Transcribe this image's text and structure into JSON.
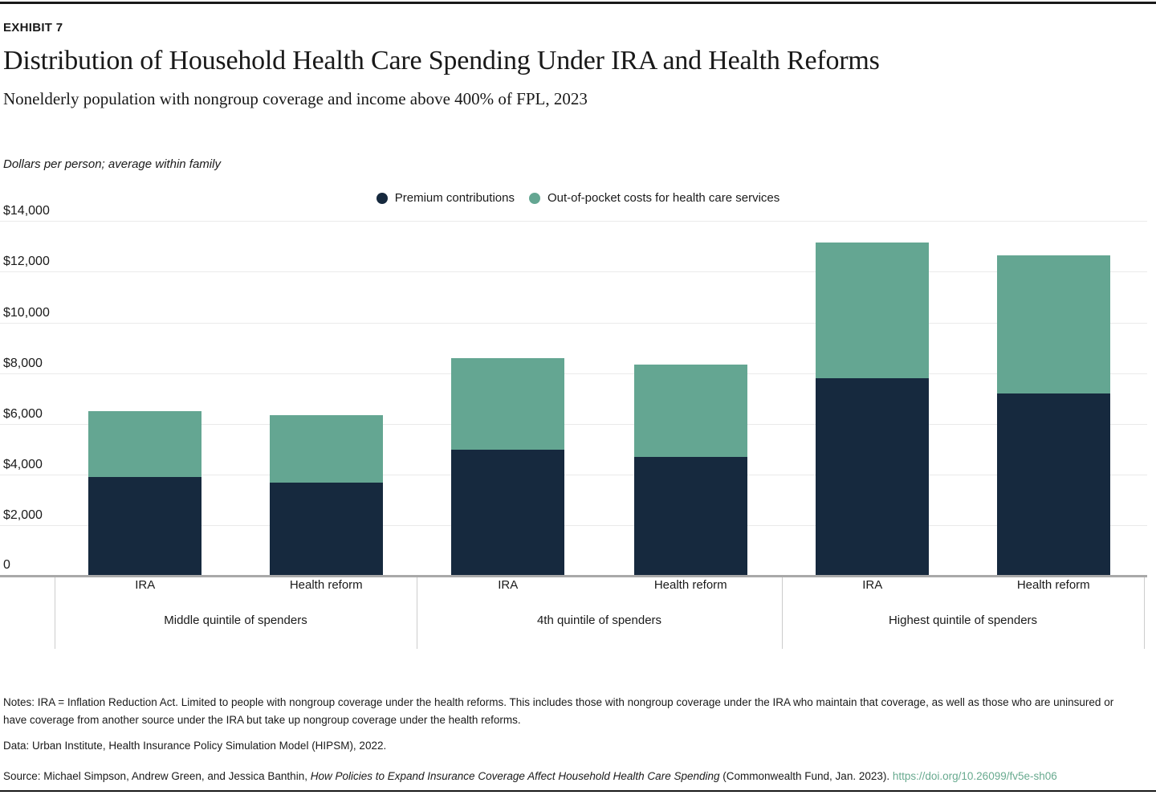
{
  "exhibit_label": "EXHIBIT 7",
  "title": "Distribution of Household Health Care Spending Under IRA and Health Reforms",
  "subtitle": "Nonelderly population with nongroup coverage and income above 400% of FPL, 2023",
  "units_note": "Dollars per person; average within family",
  "legend": [
    {
      "label": "Premium contributions",
      "color": "#16293e"
    },
    {
      "label": "Out-of-pocket costs for health care services",
      "color": "#64a692"
    }
  ],
  "chart_data": {
    "type": "bar",
    "stacked": true,
    "title": "Distribution of Household Health Care Spending Under IRA and Health Reforms",
    "xlabel": "",
    "ylabel": "Dollars per person; average within family",
    "ylim": [
      0,
      14000
    ],
    "grid": true,
    "legend_position": "top-center",
    "colors": {
      "premium": "#16293e",
      "oop": "#64a692",
      "gridline": "#eaeaea",
      "axis": "#a9a9a9",
      "separator": "#cccccc"
    },
    "ytick_values": [
      14000,
      12000,
      10000,
      8000,
      6000,
      4000,
      2000,
      0
    ],
    "ytick_labels": [
      "$14,000",
      "$12,000",
      "$10,000",
      "$8,000",
      "$6,000",
      "$4,000",
      "$2,000",
      "0"
    ],
    "categories": [
      "IRA",
      "Health reform",
      "IRA",
      "Health reform",
      "IRA",
      "Health reform"
    ],
    "series": [
      {
        "name": "Premium contributions",
        "values": [
          3850,
          3650,
          4950,
          4650,
          7750,
          7150
        ]
      },
      {
        "name": "Out-of-pocket costs for health care services",
        "values": [
          2600,
          2650,
          3600,
          3650,
          5350,
          5450
        ]
      }
    ],
    "groups": [
      {
        "label": "Middle quintile of spenders",
        "bars": [
          {
            "label": "IRA",
            "premium": 3850,
            "oop": 2600
          },
          {
            "label": "Health reform",
            "premium": 3650,
            "oop": 2650
          }
        ]
      },
      {
        "label": "4th quintile of spenders",
        "bars": [
          {
            "label": "IRA",
            "premium": 4950,
            "oop": 3600
          },
          {
            "label": "Health reform",
            "premium": 4650,
            "oop": 3650
          }
        ]
      },
      {
        "label": "Highest quintile of spenders",
        "bars": [
          {
            "label": "IRA",
            "premium": 7750,
            "oop": 5350
          },
          {
            "label": "Health reform",
            "premium": 7150,
            "oop": 5450
          }
        ]
      }
    ]
  },
  "notes": "Notes: IRA = Inflation Reduction Act. Limited to people with nongroup coverage under the health reforms. This includes those with nongroup coverage under the IRA who maintain that coverage, as well as those who are uninsured or have coverage from another source under the IRA but take up nongroup coverage under the health reforms.",
  "data_line": "Data: Urban Institute, Health Insurance Policy Simulation Model (HIPSM), 2022.",
  "source": {
    "prefix": "Source: Michael Simpson, Andrew Green, and Jessica Banthin, ",
    "book_title": "How Policies to Expand Insurance Coverage Affect Household Health Care Spending",
    "suffix": " (Commonwealth Fund, Jan. 2023). ",
    "link_text": "https://doi.org/10.26099/fv5e-sh06"
  }
}
